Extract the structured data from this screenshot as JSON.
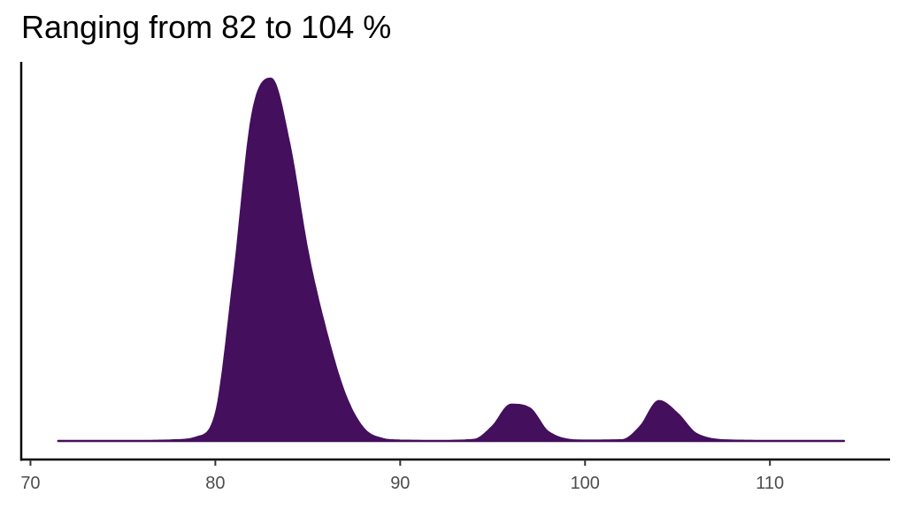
{
  "chart_data": {
    "type": "area",
    "title": "Ranging from 82 to 104 %",
    "xlabel": "",
    "ylabel": "",
    "xlim": [
      69.5,
      116.5
    ],
    "ylim": [
      0,
      1
    ],
    "x_ticks": [
      70,
      80,
      90,
      100,
      110
    ],
    "x_tick_labels": [
      "70",
      "80",
      "90",
      "100",
      "110"
    ],
    "y_ticks": [],
    "grid": false,
    "legend": "none",
    "fill_color": "#440f5d",
    "line_color": "#440f5d",
    "x_domain": [
      71.5,
      114
    ],
    "x": [
      71.5,
      76,
      78,
      79,
      80,
      81,
      82,
      83,
      84,
      85,
      86,
      87,
      88,
      89,
      90,
      92,
      94,
      95,
      96,
      97,
      98,
      100,
      102,
      103,
      104,
      105,
      106,
      108,
      110,
      112,
      114
    ],
    "y": [
      0,
      0,
      0.002,
      0.01,
      0.07,
      0.45,
      0.9,
      1.0,
      0.82,
      0.52,
      0.3,
      0.13,
      0.035,
      0.006,
      0.001,
      0,
      0.003,
      0.04,
      0.1,
      0.09,
      0.025,
      0.001,
      0.002,
      0.04,
      0.11,
      0.075,
      0.02,
      0.001,
      0,
      0,
      0
    ]
  }
}
